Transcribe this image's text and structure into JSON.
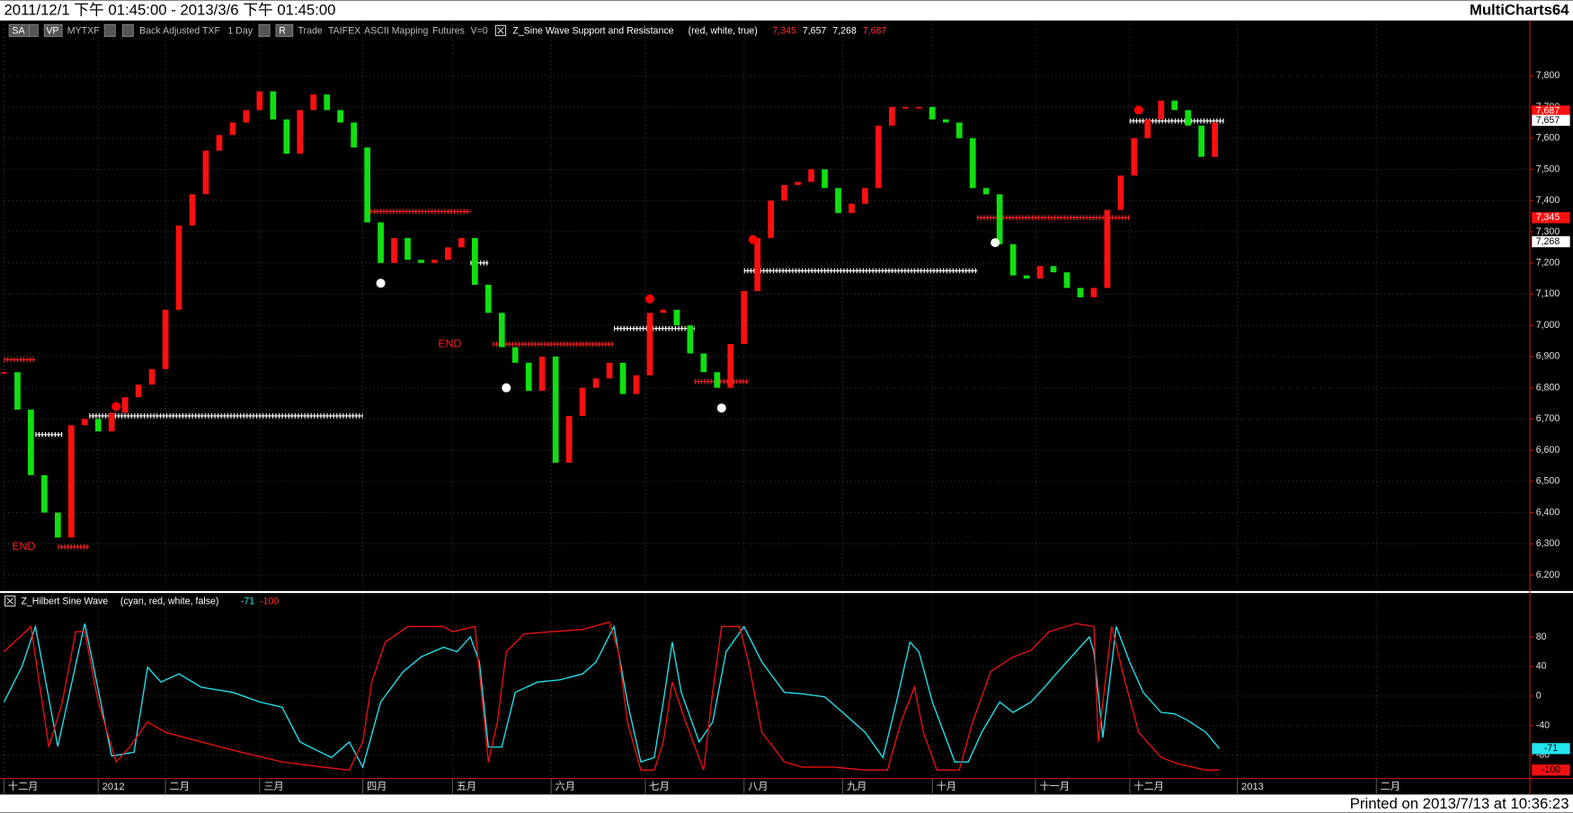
{
  "header": {
    "title": "2011/12/1 下午 01:45:00 - 2013/3/6 下午 01:45:00",
    "app": "MultiCharts64",
    "footer": "Printed on 2013/7/13 at 10:36:23"
  },
  "toolbar": {
    "items": [
      "SA",
      "VP",
      "MYTXF",
      "Back Adjusted TXF",
      "1 Day",
      "R",
      "Trade",
      "TAIFEX",
      "ASCII Mapping",
      "Futures",
      "V=0"
    ]
  },
  "chart_data": [
    {
      "type": "candlestick",
      "title": "Z_Sine Wave Support and Resistance",
      "subtitle": "(red,  white,  true)",
      "up_color": "#ff1010",
      "down_color": "#10e010",
      "grid": true,
      "xlim": [
        0,
        340
      ],
      "ylim": [
        6152,
        7977
      ],
      "yticks": [
        {
          "value": 6200,
          "label": "6,200"
        },
        {
          "value": 6300,
          "label": "6,300"
        },
        {
          "value": 6400,
          "label": "6,400"
        },
        {
          "value": 6500,
          "label": "6,500"
        },
        {
          "value": 6600,
          "label": "6,600"
        },
        {
          "value": 6700,
          "label": "6,700"
        },
        {
          "value": 6800,
          "label": "6,800"
        },
        {
          "value": 6900,
          "label": "6,900"
        },
        {
          "value": 7000,
          "label": "7,000"
        },
        {
          "value": 7100,
          "label": "7,100"
        },
        {
          "value": 7200,
          "label": "7,200"
        },
        {
          "value": 7300,
          "label": "7,300"
        },
        {
          "value": 7400,
          "label": "7,400"
        },
        {
          "value": 7500,
          "label": "7,500"
        },
        {
          "value": 7600,
          "label": "7,600"
        },
        {
          "value": 7700,
          "label": "7,700"
        },
        {
          "value": 7800,
          "label": "7,800"
        }
      ],
      "x": [
        0,
        3,
        6,
        9,
        12,
        15,
        18,
        21,
        24,
        27,
        30,
        33,
        36,
        39,
        42,
        45,
        48,
        51,
        54,
        57,
        60,
        63,
        66,
        69,
        72,
        75,
        78,
        81,
        84,
        87,
        90,
        93,
        96,
        99,
        102,
        105,
        108,
        111,
        114,
        117,
        120,
        123,
        126,
        129,
        132,
        135,
        138,
        141,
        144,
        147,
        150,
        153,
        156,
        159,
        162,
        165,
        168,
        171,
        174,
        177,
        180,
        183,
        186,
        189,
        192,
        195,
        198,
        201,
        204,
        207,
        210,
        213,
        216,
        219,
        222,
        225,
        228,
        231,
        234,
        237,
        240,
        243,
        246,
        249,
        252,
        255,
        258,
        261,
        264,
        267,
        270
      ],
      "close": [
        6850,
        6730,
        6520,
        6400,
        6320,
        6680,
        6700,
        6660,
        6720,
        6770,
        6810,
        6860,
        7050,
        7320,
        7420,
        7560,
        7610,
        7650,
        7690,
        7750,
        7660,
        7550,
        7690,
        7740,
        7690,
        7650,
        7570,
        7330,
        7200,
        7280,
        7210,
        7200,
        7210,
        7250,
        7280,
        7130,
        7040,
        6930,
        6880,
        6790,
        6900,
        6560,
        6710,
        6800,
        6830,
        6880,
        6780,
        6840,
        7040,
        7050,
        7000,
        6910,
        6850,
        6800,
        6940,
        7110,
        7280,
        7400,
        7450,
        7460,
        7500,
        7440,
        7360,
        7390,
        7440,
        7640,
        7700,
        7700,
        7700,
        7660,
        7650,
        7600,
        7440,
        7420,
        7260,
        7160,
        7150,
        7190,
        7170,
        7120,
        7090,
        7120,
        7370,
        7480,
        7600,
        7660,
        7720,
        7690,
        7640,
        7540,
        7650
      ],
      "levels": [
        {
          "color": "#ff2020",
          "value": 6890,
          "x": [
            0,
            7
          ]
        },
        {
          "color": "#ffffff",
          "value": 6650,
          "x": [
            7,
            13
          ]
        },
        {
          "color": "#ffffff",
          "value": 6710,
          "x": [
            19,
            80
          ]
        },
        {
          "color": "#ff2020",
          "value": 6290,
          "x": [
            12,
            19
          ]
        },
        {
          "color": "#ff2020",
          "value": 7365,
          "x": [
            81,
            104
          ]
        },
        {
          "color": "#ffffff",
          "value": 7200,
          "x": [
            104,
            108
          ]
        },
        {
          "color": "#ff2020",
          "value": 6940,
          "x": [
            109,
            136
          ]
        },
        {
          "color": "#ffffff",
          "value": 6990,
          "x": [
            136,
            154
          ]
        },
        {
          "color": "#ff2020",
          "value": 6820,
          "x": [
            154,
            166
          ]
        },
        {
          "color": "#ffffff",
          "value": 7175,
          "x": [
            165,
            217
          ]
        },
        {
          "color": "#ff2020",
          "value": 7345,
          "x": [
            217,
            251
          ]
        },
        {
          "color": "#ffffff",
          "value": 7655,
          "x": [
            251,
            272
          ]
        }
      ],
      "annotations": [
        {
          "text": "END",
          "x": 7,
          "y": 6290
        },
        {
          "text": "END",
          "x": 102,
          "y": 6940
        }
      ],
      "markers": [
        {
          "x": 25,
          "value": 6740,
          "color": "#ff0000"
        },
        {
          "x": 84,
          "value": 7135,
          "color": "#ffffff"
        },
        {
          "x": 112,
          "value": 6800,
          "color": "#ffffff"
        },
        {
          "x": 144,
          "value": 7085,
          "color": "#ff0000"
        },
        {
          "x": 160,
          "value": 6735,
          "color": "#ffffff"
        },
        {
          "x": 167,
          "value": 7275,
          "color": "#ff0000"
        },
        {
          "x": 221,
          "value": 7265,
          "color": "#ffffff"
        },
        {
          "x": 253,
          "value": 7690,
          "color": "#ff0000"
        }
      ],
      "last_values": [
        {
          "value": 7687,
          "label": "7,687",
          "color": "#ff1010"
        },
        {
          "value": 7345,
          "label": "7,345",
          "color": "#ff1010"
        },
        {
          "value": 7657,
          "label": "7,657",
          "color": "#ffffff"
        },
        {
          "value": 7268,
          "label": "7,268",
          "color": "#ffffff"
        }
      ]
    },
    {
      "type": "line",
      "title": "Z_Hilbert Sine Wave",
      "subtitle": "(cyan,  red,  white,  false)",
      "grid": true,
      "xlim": [
        0,
        340
      ],
      "ylim": [
        -110,
        138
      ],
      "yticks": [
        80,
        40,
        0,
        -40,
        -80
      ],
      "xticks": [
        {
          "value": 0,
          "label": "十二月"
        },
        {
          "value": 21,
          "label": "2012"
        },
        {
          "value": 36,
          "label": "二月"
        },
        {
          "value": 57,
          "label": "三月"
        },
        {
          "value": 80,
          "label": "四月"
        },
        {
          "value": 100,
          "label": "五月"
        },
        {
          "value": 122,
          "label": "六月"
        },
        {
          "value": 143,
          "label": "七月"
        },
        {
          "value": 165,
          "label": "八月"
        },
        {
          "value": 187,
          "label": "九月"
        },
        {
          "value": 207,
          "label": "十月"
        },
        {
          "value": 230,
          "label": "十一月"
        },
        {
          "value": 251,
          "label": "十二月"
        },
        {
          "value": 275,
          "label": "2013"
        },
        {
          "value": 306,
          "label": "二月"
        }
      ],
      "series": [
        {
          "color": "#22e5f0",
          "last_value": -71,
          "x": [
            0,
            4,
            7,
            12,
            18,
            24,
            29,
            32,
            35,
            39,
            44,
            51,
            57,
            62,
            66,
            73,
            77,
            80,
            84,
            89,
            93,
            98,
            101,
            104,
            106,
            108,
            111,
            114,
            119,
            124,
            129,
            132,
            136,
            139,
            142,
            145,
            147,
            149,
            151,
            155,
            158,
            161,
            165,
            169,
            174,
            178,
            183,
            187,
            192,
            196,
            199,
            202,
            204,
            207,
            212,
            215,
            218,
            222,
            225,
            229,
            232,
            235,
            239,
            242,
            243,
            245,
            248,
            251,
            254,
            258,
            261,
            264,
            268,
            271
          ],
          "values": [
            -8,
            40,
            94,
            -68,
            98,
            -81,
            -76,
            39,
            19,
            30,
            12,
            5,
            -8,
            -15,
            -62,
            -83,
            -62,
            -96,
            -8,
            33,
            53,
            66,
            60,
            80,
            46,
            -69,
            -69,
            5,
            19,
            22,
            30,
            46,
            94,
            -8,
            -89,
            -83,
            -8,
            73,
            5,
            -62,
            -35,
            60,
            94,
            46,
            5,
            3,
            -1,
            -22,
            -49,
            -83,
            -8,
            73,
            60,
            -8,
            -89,
            -89,
            -49,
            -8,
            -22,
            -8,
            12,
            33,
            60,
            80,
            60,
            -56,
            94,
            46,
            5,
            -22,
            -24,
            -33,
            -49,
            -71
          ]
        },
        {
          "color": "#ee1111",
          "last_value": -100,
          "x": [
            0,
            6,
            10,
            13,
            16,
            18,
            21,
            25,
            28,
            32,
            36,
            44,
            53,
            62,
            71,
            77,
            80,
            82,
            85,
            90,
            98,
            100,
            105,
            108,
            110,
            112,
            116,
            122,
            129,
            135,
            137,
            139,
            142,
            145,
            147,
            149,
            152,
            156,
            158,
            160,
            164,
            166,
            169,
            174,
            178,
            185,
            192,
            197,
            200,
            203,
            205,
            208,
            213,
            216,
            220,
            225,
            229,
            233,
            239,
            243,
            244,
            247,
            250,
            253,
            258,
            262,
            268,
            271
          ],
          "values": [
            60,
            94,
            -69,
            -8,
            87,
            87,
            -8,
            -89,
            -69,
            -35,
            -49,
            -62,
            -76,
            -89,
            -96,
            -100,
            -62,
            19,
            73,
            94,
            94,
            87,
            94,
            -89,
            -35,
            60,
            84,
            87,
            90,
            100,
            60,
            -35,
            -100,
            -100,
            -62,
            19,
            -35,
            -100,
            5,
            94,
            94,
            46,
            -49,
            -89,
            -96,
            -96,
            -100,
            -100,
            -35,
            12,
            -49,
            -100,
            -100,
            -35,
            33,
            53,
            62,
            87,
            98,
            94,
            -62,
            94,
            19,
            -49,
            -83,
            -92,
            -100,
            -100
          ]
        }
      ]
    }
  ]
}
